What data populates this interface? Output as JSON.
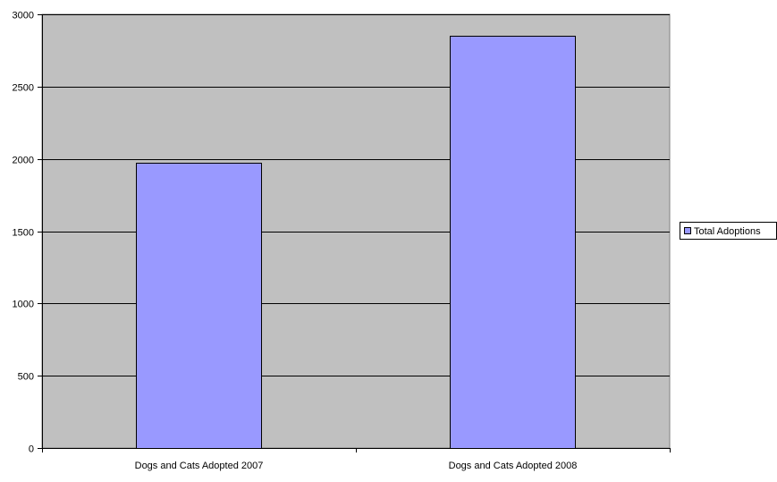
{
  "chart_data": {
    "type": "bar",
    "categories": [
      "Dogs and Cats Adopted 2007",
      "Dogs and Cats Adopted 2008"
    ],
    "series": [
      {
        "name": "Total Adoptions",
        "values": [
          1975,
          2850
        ],
        "color": "#9999ff"
      }
    ],
    "title": "",
    "xlabel": "",
    "ylabel": "",
    "ylim": [
      0,
      3000
    ],
    "yticks": [
      0,
      500,
      1000,
      1500,
      2000,
      2500,
      3000
    ],
    "grid": true,
    "legend": "right",
    "plot_background": "#c0c0c0"
  }
}
